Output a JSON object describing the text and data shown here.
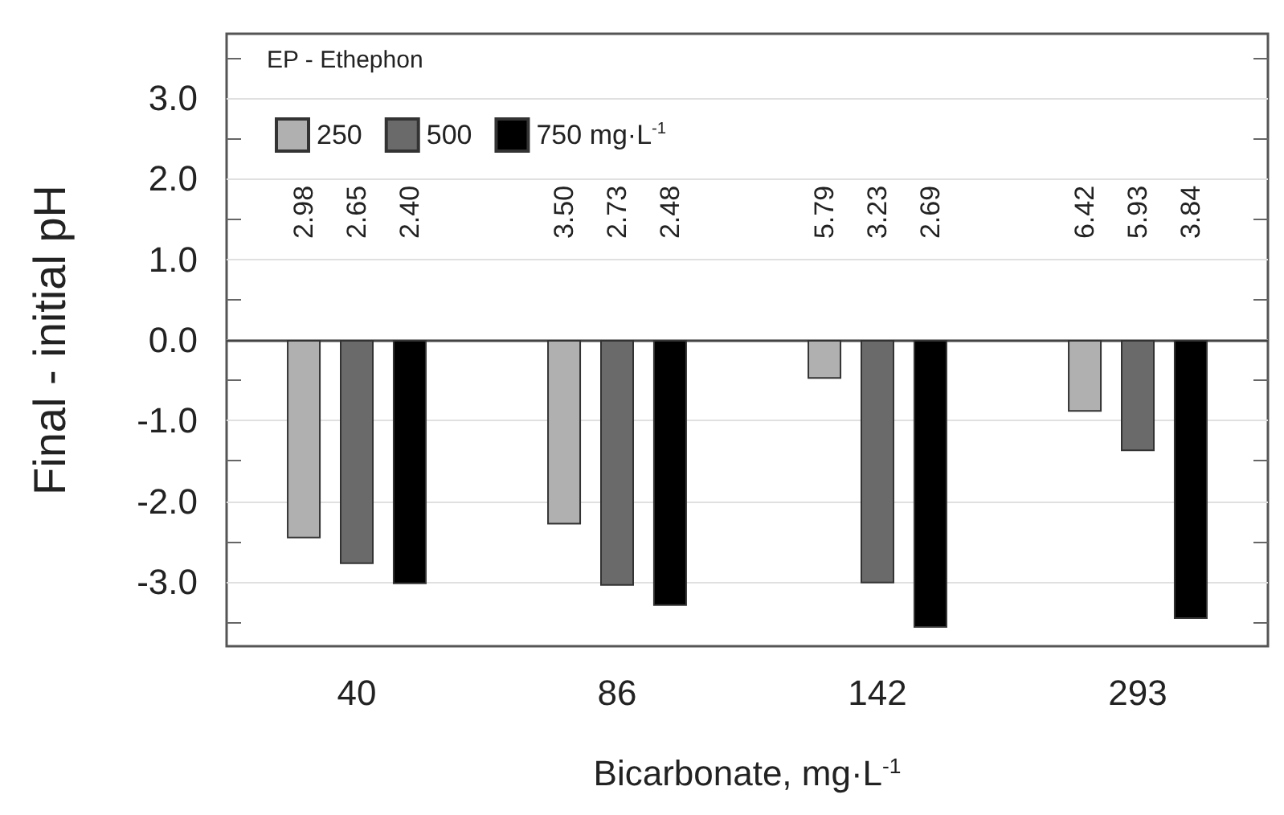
{
  "chart_data": {
    "type": "bar",
    "xlabel": "Bicarbonate, mg·L$^{-1}$",
    "ylabel": "Final - initial pH",
    "legend_title": "EP - Ethephon",
    "categories": [
      "40",
      "86",
      "142",
      "293"
    ],
    "series": [
      {
        "name": "250",
        "color": "#b0b0b0",
        "values": [
          -2.46,
          -2.29,
          -0.48,
          -0.89
        ]
      },
      {
        "name": "500",
        "color": "#6a6a6a",
        "values": [
          -2.78,
          -3.05,
          -3.02,
          -1.38
        ]
      },
      {
        "name": "750 mg·L$^{-1}$",
        "color": "#000000",
        "values": [
          -3.03,
          -3.3,
          -3.57,
          -3.46
        ]
      }
    ],
    "ylim": [
      -3.8,
      3.8
    ],
    "yticks": [
      {
        "value": -3.5,
        "label": null
      },
      {
        "value": -3,
        "label": "-3.0"
      },
      {
        "value": -2.5,
        "label": null
      },
      {
        "value": -2,
        "label": "-2.0"
      },
      {
        "value": -1.5,
        "label": null
      },
      {
        "value": -1,
        "label": "-1.0"
      },
      {
        "value": -0.5,
        "label": null
      },
      {
        "value": 0,
        "label": "0.0"
      },
      {
        "value": 0.5,
        "label": null
      },
      {
        "value": 1,
        "label": "1.0"
      },
      {
        "value": 1.5,
        "label": null
      },
      {
        "value": 2,
        "label": "2.0"
      },
      {
        "value": 2.5,
        "label": null
      },
      {
        "value": 3,
        "label": "3.0"
      },
      {
        "value": 3.5,
        "label": null
      }
    ],
    "grid": "y",
    "legend": "top left",
    "ref_lines": [
      {
        "axis": "y",
        "value": 0,
        "color": "#444444"
      }
    ],
    "annotations": [
      "2.98",
      "2.65",
      "2.40",
      "3.50",
      "2.73",
      "2.48",
      "5.79",
      "3.23",
      "2.69",
      "6.42",
      "5.93",
      "3.84"
    ]
  }
}
